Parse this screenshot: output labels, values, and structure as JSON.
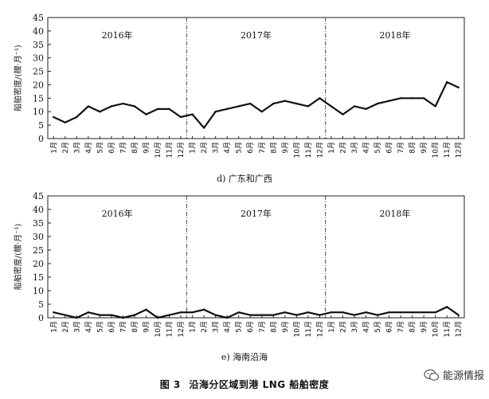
{
  "months": [
    "1月",
    "2月",
    "3月",
    "4月",
    "5月",
    "6月",
    "7月",
    "8月",
    "9月",
    "10月",
    "11月",
    "12月",
    "1月",
    "2月",
    "3月",
    "4月",
    "5月",
    "6月",
    "7月",
    "8月",
    "9月",
    "10月",
    "11月",
    "12月",
    "1月",
    "2月",
    "3月",
    "4月",
    "5月",
    "6月",
    "7月",
    "8月",
    "9月",
    "10月",
    "11月",
    "12月"
  ],
  "chart_data": [
    {
      "type": "line",
      "caption": "d) 广东和广西",
      "ylabel": "船舶密度/(艘·月⁻¹)",
      "ylim": [
        0,
        45
      ],
      "yticks": [
        0,
        5,
        10,
        15,
        20,
        25,
        30,
        35,
        40,
        45
      ],
      "year_labels": [
        "2016年",
        "2017年",
        "2018年"
      ],
      "grid": false,
      "values": [
        8,
        6,
        8,
        12,
        10,
        12,
        13,
        12,
        9,
        11,
        11,
        8,
        9,
        4,
        10,
        11,
        12,
        13,
        10,
        13,
        14,
        13,
        12,
        15,
        12,
        9,
        12,
        11,
        13,
        14,
        15,
        15,
        15,
        12,
        21,
        19
      ]
    },
    {
      "type": "line",
      "caption": "e) 海南沿海",
      "ylabel": "船舶密度/(艘·月⁻¹)",
      "ylim": [
        0,
        45
      ],
      "yticks": [
        0,
        5,
        10,
        15,
        20,
        25,
        30,
        35,
        40,
        45
      ],
      "year_labels": [
        "2016年",
        "2017年",
        "2018年"
      ],
      "grid": false,
      "values": [
        2,
        1,
        0,
        2,
        1,
        1,
        0,
        1,
        3,
        0,
        1,
        2,
        2,
        3,
        1,
        0,
        2,
        1,
        1,
        1,
        2,
        1,
        2,
        1,
        2,
        2,
        1,
        2,
        1,
        2,
        2,
        2,
        2,
        2,
        4,
        1
      ]
    }
  ],
  "figure_caption": {
    "number": "图 3",
    "title": "沿海分区域到港 LNG 船舶密度"
  },
  "watermark": {
    "text": "能源情报",
    "icon": "wechat-icon"
  },
  "colors": {
    "line": "#111111",
    "axis": "#222222",
    "divider": "#444444"
  }
}
